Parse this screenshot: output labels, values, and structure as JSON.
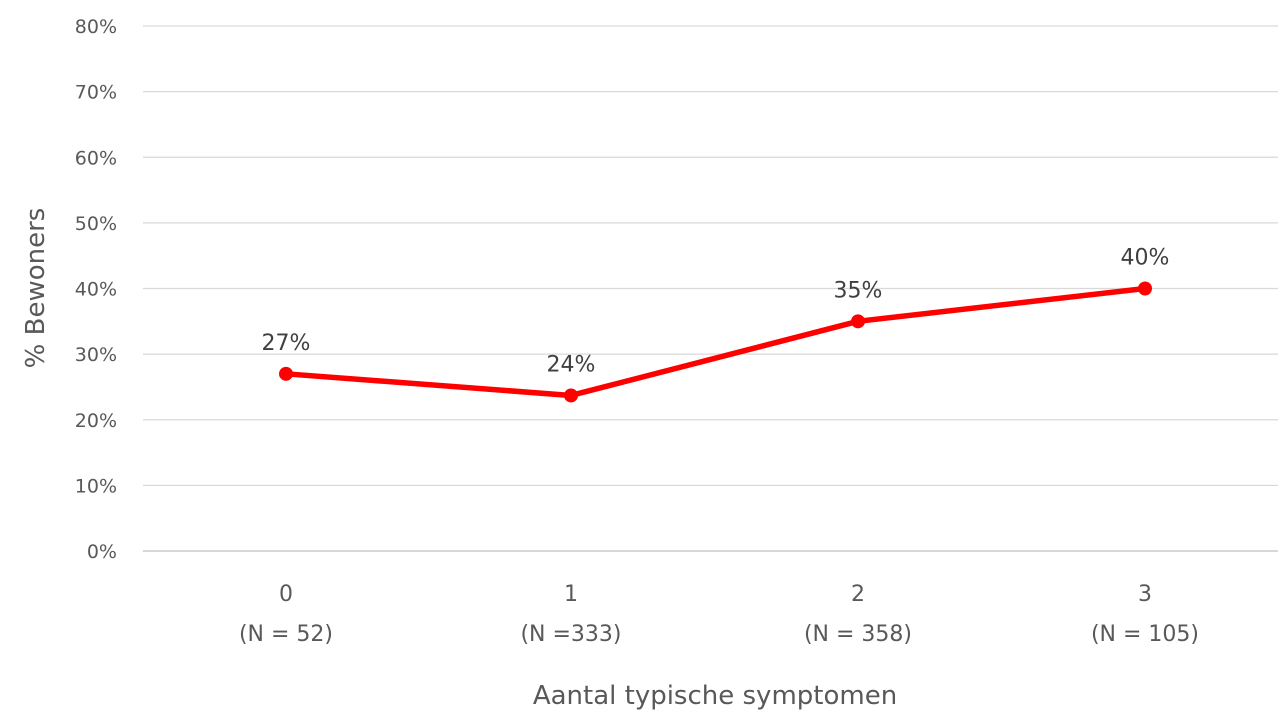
{
  "chart_data": {
    "type": "line",
    "title": "",
    "xlabel": "Aantal typische symptomen",
    "ylabel": "% Bewoners",
    "categories": [
      "0",
      "1",
      "2",
      "3"
    ],
    "category_sublabels": [
      "(N = 52)",
      "(N =333)",
      "(N = 358)",
      "(N = 105)"
    ],
    "ylim": [
      0,
      80
    ],
    "yticks": [
      0,
      10,
      20,
      30,
      40,
      50,
      60,
      70,
      80
    ],
    "ytick_suffix": "%",
    "grid": true,
    "legend": "none",
    "series": [
      {
        "values": [
          27,
          23.7,
          35,
          40
        ],
        "data_labels": [
          "27%",
          "24%",
          "35%",
          "40%"
        ],
        "color": "#ff0000"
      }
    ]
  }
}
